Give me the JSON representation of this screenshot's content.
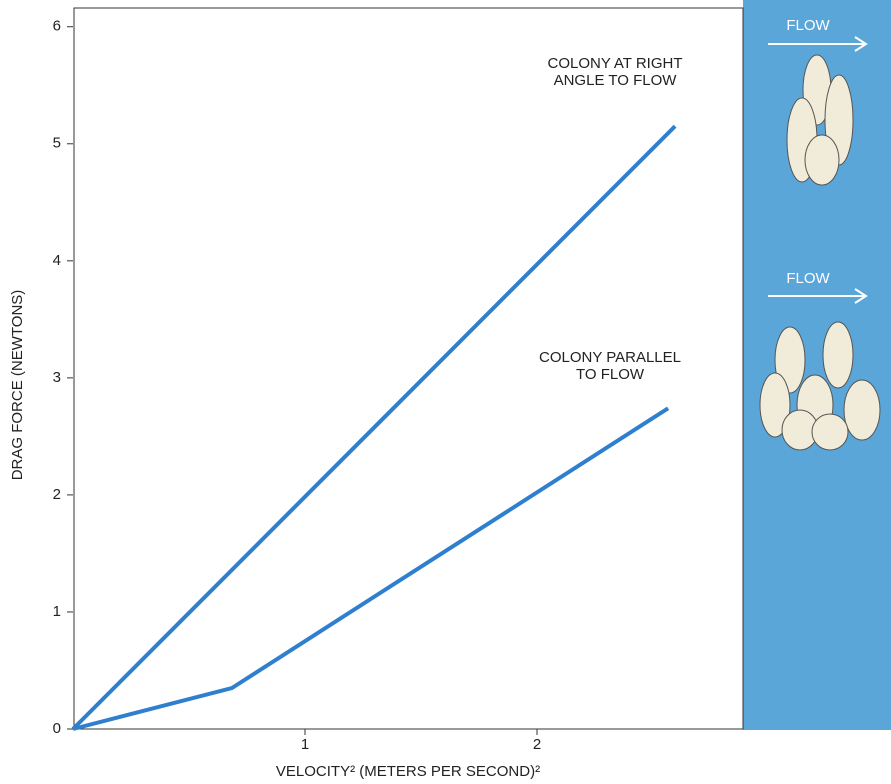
{
  "chart_data": {
    "type": "line",
    "xlabel": "VELOCITY² (METERS PER SECOND)²",
    "ylabel": "DRAG FORCE (NEWTONS)",
    "xlim": [
      0,
      2.89
    ],
    "ylim": [
      0,
      6.16
    ],
    "xticks": [
      1,
      2
    ],
    "yticks": [
      0,
      1,
      2,
      3,
      4,
      5,
      6
    ],
    "series": [
      {
        "color": "#2f7fcf",
        "x": [
          0,
          2.595
        ],
        "values": [
          0,
          5.15
        ]
      },
      {
        "color": "#2f7fcf",
        "x": [
          0,
          0.685,
          2.565
        ],
        "values": [
          0,
          0.35,
          2.74
        ]
      }
    ],
    "annotations": [
      {
        "lines": [
          "COLONY AT RIGHT",
          "ANGLE TO FLOW"
        ]
      },
      {
        "lines": [
          "COLONY PARALLEL",
          "TO FLOW"
        ]
      }
    ],
    "panel_labels": [
      "FLOW",
      "FLOW"
    ]
  }
}
